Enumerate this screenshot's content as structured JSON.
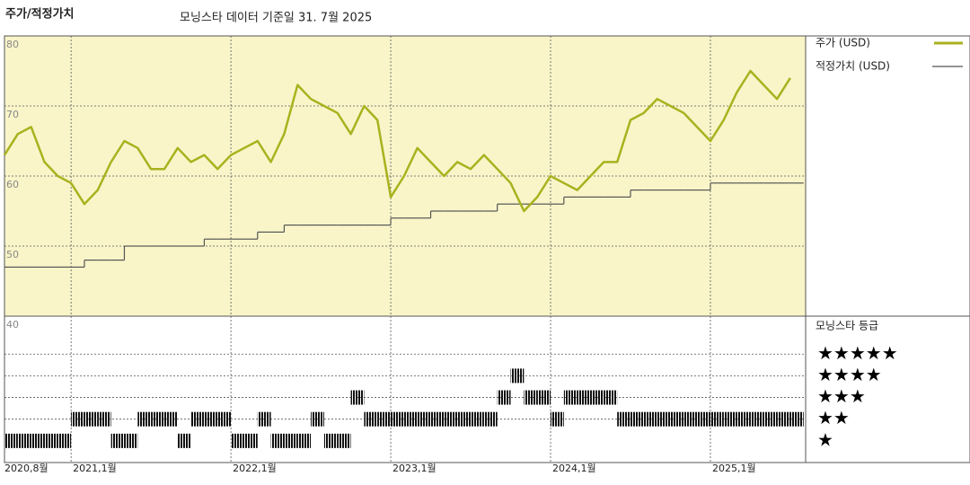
{
  "chart_data": [
    {
      "type": "line",
      "title": "주가/적정가치",
      "subtitle": "모닝스타 데이터 기준일 31. 7월 2025",
      "categories": [
        "2020,8월",
        null,
        null,
        null,
        null,
        "2021,1월",
        null,
        null,
        null,
        null,
        null,
        null,
        null,
        null,
        null,
        null,
        null,
        "2022,1월",
        null,
        null,
        null,
        null,
        null,
        null,
        null,
        null,
        null,
        null,
        null,
        "2023,1월",
        null,
        null,
        null,
        null,
        null,
        null,
        null,
        null,
        null,
        null,
        null,
        "2024,1월",
        null,
        null,
        null,
        null,
        null,
        null,
        null,
        null,
        null,
        null,
        null,
        "2025,1월",
        null,
        null,
        null,
        null,
        null,
        null
      ],
      "series": [
        {
          "name": "주가 (USD)",
          "color": "#a9b21e",
          "values": [
            63,
            66,
            67,
            62,
            60,
            59,
            56,
            58,
            62,
            65,
            64,
            61,
            61,
            64,
            62,
            63,
            61,
            63,
            64,
            65,
            62,
            66,
            73,
            71,
            70,
            69,
            66,
            70,
            68,
            57,
            60,
            64,
            62,
            60,
            62,
            61,
            63,
            61,
            59,
            55,
            57,
            60,
            59,
            58,
            60,
            62,
            62,
            68,
            69,
            71,
            70,
            69,
            67,
            65,
            68,
            72,
            75,
            73,
            71,
            74
          ]
        },
        {
          "name": "적정가치 (USD)",
          "color": "#555555",
          "values": [
            47,
            47,
            47,
            47,
            47,
            47,
            48,
            48,
            48,
            50,
            50,
            50,
            50,
            50,
            50,
            51,
            51,
            51,
            51,
            52,
            52,
            53,
            53,
            53,
            53,
            53,
            53,
            53,
            53,
            54,
            54,
            54,
            55,
            55,
            55,
            55,
            55,
            56,
            56,
            56,
            56,
            56,
            57,
            57,
            57,
            57,
            57,
            58,
            58,
            58,
            58,
            58,
            58,
            59,
            59,
            59,
            59,
            59,
            59,
            59
          ]
        }
      ],
      "ylim": [
        40,
        80
      ],
      "yticks": [
        40,
        50,
        60,
        70,
        80
      ],
      "grid": true
    },
    {
      "type": "rating",
      "title": "모닝스타 등급",
      "values": [
        1,
        1,
        1,
        1,
        1,
        2,
        2,
        2,
        1,
        1,
        2,
        2,
        2,
        1,
        2,
        2,
        2,
        1,
        1,
        2,
        1,
        1,
        1,
        2,
        1,
        1,
        3,
        2,
        2,
        2,
        2,
        2,
        2,
        2,
        2,
        2,
        2,
        3,
        4,
        3,
        3,
        2,
        3,
        3,
        3,
        3,
        2,
        2,
        2,
        2,
        2,
        2,
        2,
        2,
        2,
        2,
        2,
        2,
        2,
        2
      ],
      "ylim": [
        0,
        6.75
      ],
      "yticks": [
        {
          "value": 1,
          "label": "★"
        },
        {
          "value": 2,
          "label": "★★"
        },
        {
          "value": 3,
          "label": "★★★"
        },
        {
          "value": 4,
          "label": "★★★★"
        },
        {
          "value": 5,
          "label": "★★★★★"
        }
      ],
      "color": "#111111"
    }
  ]
}
